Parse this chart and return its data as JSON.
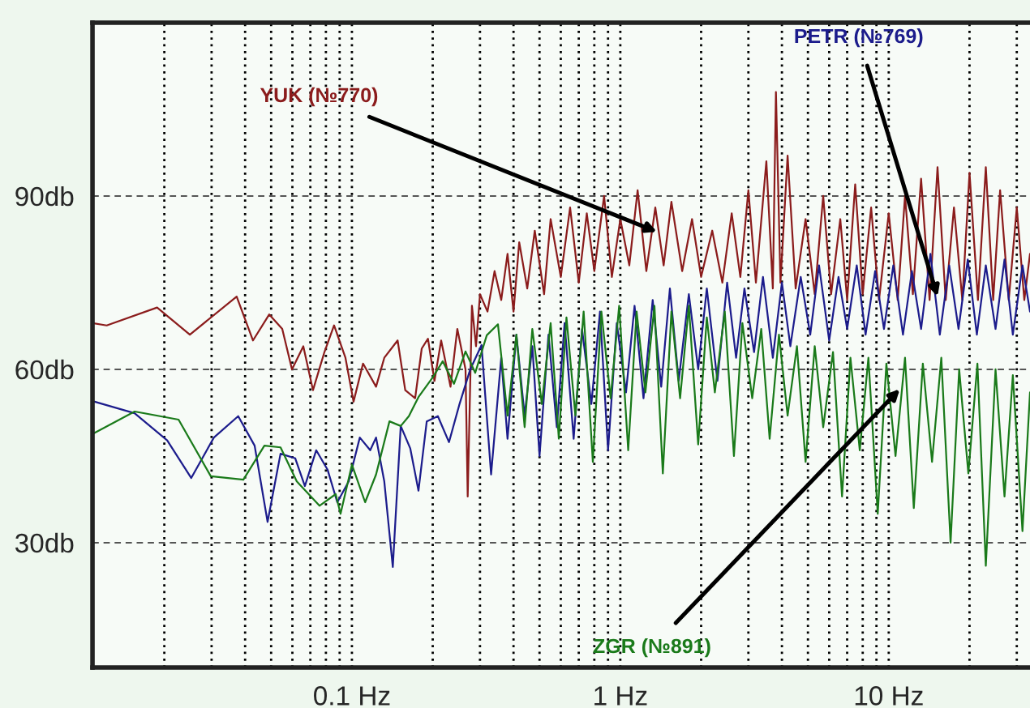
{
  "chart_data": {
    "type": "line",
    "log": "x",
    "grid": true,
    "line_style": "solid",
    "marker": "none",
    "xlim": [
      0.0108,
      33.6
    ],
    "ylim": [
      8.4,
      120
    ],
    "xticks": [
      {
        "value": 0.1,
        "label": "0.1 Hz"
      },
      {
        "value": 1,
        "label": "1 Hz"
      },
      {
        "value": 10,
        "label": "10 Hz"
      }
    ],
    "yticks": [
      {
        "value": 30,
        "label": "30db"
      },
      {
        "value": 60,
        "label": "60db"
      },
      {
        "value": 90,
        "label": "90db"
      }
    ],
    "annotations": [
      {
        "text": "YUK (№770)",
        "x": 1.37,
        "y": 83.8
      },
      {
        "text": "PETR (№769)",
        "x": 15.2,
        "y": 72.6
      },
      {
        "text": "ZGR (№891)",
        "x": 11,
        "y": 56.6
      }
    ],
    "series": [
      {
        "color": "#8b1c1c",
        "x": [
          0.0108,
          0.0122,
          0.0188,
          0.0249,
          0.0372,
          0.0428,
          0.0492,
          0.055,
          0.0598,
          0.0659,
          0.0716,
          0.079,
          0.0858,
          0.0946,
          0.1014,
          0.11,
          0.123,
          0.132,
          0.148,
          0.158,
          0.172,
          0.182,
          0.192,
          0.203,
          0.215,
          0.233,
          0.247,
          0.265,
          0.27,
          0.28,
          0.29,
          0.3,
          0.32,
          0.34,
          0.36,
          0.38,
          0.4,
          0.42,
          0.45,
          0.48,
          0.52,
          0.55,
          0.6,
          0.65,
          0.7,
          0.75,
          0.8,
          0.87,
          0.93,
          1.0,
          1.08,
          1.16,
          1.25,
          1.35,
          1.45,
          1.55,
          1.7,
          1.85,
          2.0,
          2.2,
          2.4,
          2.6,
          2.8,
          3.0,
          3.2,
          3.5,
          3.7,
          3.8,
          3.95,
          4.2,
          4.5,
          4.9,
          5.3,
          5.7,
          6.1,
          6.6,
          7.0,
          7.5,
          8.0,
          8.6,
          9.2,
          10,
          10.8,
          11.5,
          12.3,
          13.2,
          14.2,
          15.2,
          16.3,
          17.5,
          18.8,
          20,
          21.5,
          23,
          24.5,
          26,
          28,
          30,
          32,
          33.6
        ],
        "values": [
          68,
          67.6,
          70.7,
          66,
          72.6,
          65,
          69.5,
          67,
          60,
          64,
          56.4,
          63,
          67.6,
          62,
          54.4,
          61,
          57,
          62,
          65,
          56.4,
          55,
          63.6,
          65.3,
          58,
          65,
          57,
          67,
          60,
          38,
          71,
          64,
          73,
          70,
          77,
          72,
          80,
          70,
          82,
          74,
          84,
          73,
          86,
          76,
          88,
          75,
          87,
          77,
          90,
          76,
          86,
          78,
          91,
          77,
          88,
          78,
          89,
          77,
          86,
          76,
          84,
          75,
          87,
          76,
          91,
          75,
          96,
          74,
          108,
          75,
          97,
          74,
          86,
          73,
          90,
          73,
          86,
          72,
          92,
          73,
          88,
          72,
          87,
          72,
          90,
          73,
          93,
          72,
          95,
          72,
          88,
          72,
          94,
          72,
          95,
          72,
          91,
          72,
          88,
          72,
          80
        ]
      },
      {
        "color": "#1c1c8c",
        "x": [
          0.011,
          0.0155,
          0.0205,
          0.0252,
          0.0306,
          0.0377,
          0.0434,
          0.0485,
          0.0542,
          0.0615,
          0.0668,
          0.0736,
          0.0812,
          0.0882,
          0.0973,
          0.107,
          0.117,
          0.123,
          0.132,
          0.142,
          0.152,
          0.165,
          0.177,
          0.19,
          0.209,
          0.23,
          0.251,
          0.276,
          0.304,
          0.33,
          0.36,
          0.38,
          0.41,
          0.44,
          0.47,
          0.5,
          0.54,
          0.58,
          0.62,
          0.67,
          0.72,
          0.78,
          0.84,
          0.9,
          0.97,
          1.05,
          1.13,
          1.22,
          1.32,
          1.42,
          1.53,
          1.65,
          1.8,
          1.95,
          2.1,
          2.3,
          2.5,
          2.7,
          2.9,
          3.15,
          3.4,
          3.7,
          4.0,
          4.3,
          4.7,
          5.1,
          5.5,
          6.0,
          6.5,
          7.0,
          7.6,
          8.2,
          8.9,
          9.6,
          10.4,
          11.3,
          12.2,
          13.2,
          14.3,
          15.5,
          16.8,
          18.2,
          19.7,
          21.3,
          23,
          25,
          27,
          29,
          31.5,
          33.6
        ],
        "values": [
          54.4,
          52.4,
          47.7,
          41.2,
          48.2,
          51.9,
          46.8,
          33.6,
          45.4,
          44.6,
          39.8,
          46,
          42.6,
          37,
          40.6,
          48.2,
          46,
          48.2,
          40.6,
          25.8,
          50.2,
          46.3,
          39,
          51,
          51.9,
          47.4,
          53.8,
          60,
          64.2,
          41.8,
          62,
          48,
          66,
          52,
          64,
          45,
          66,
          50,
          68,
          48,
          67,
          54,
          70,
          46,
          68,
          56,
          71,
          55,
          72,
          57,
          74,
          58,
          73,
          60,
          74,
          58,
          75,
          62,
          74,
          63,
          76,
          62,
          75,
          64,
          76,
          66,
          78,
          65,
          76,
          67,
          78,
          66,
          77,
          67,
          78,
          66,
          77,
          67,
          80,
          66,
          78,
          67,
          79,
          66,
          78,
          67,
          79,
          66,
          78,
          70
        ]
      },
      {
        "color": "#1a7a1a",
        "x": [
          0.0108,
          0.0155,
          0.0226,
          0.0298,
          0.0394,
          0.0472,
          0.0542,
          0.0623,
          0.0757,
          0.087,
          0.0907,
          0.1,
          0.112,
          0.123,
          0.138,
          0.152,
          0.163,
          0.177,
          0.2,
          0.218,
          0.24,
          0.265,
          0.288,
          0.318,
          0.35,
          0.38,
          0.41,
          0.44,
          0.47,
          0.51,
          0.55,
          0.59,
          0.63,
          0.68,
          0.73,
          0.79,
          0.85,
          0.92,
          0.99,
          1.07,
          1.15,
          1.24,
          1.34,
          1.44,
          1.55,
          1.67,
          1.8,
          1.95,
          2.1,
          2.25,
          2.45,
          2.65,
          2.85,
          3.1,
          3.35,
          3.6,
          3.9,
          4.2,
          4.55,
          4.9,
          5.3,
          5.7,
          6.2,
          6.7,
          7.2,
          7.8,
          8.4,
          9.1,
          9.8,
          10.6,
          11.5,
          12.4,
          13.4,
          14.5,
          15.7,
          17,
          18.3,
          19.8,
          21.4,
          23,
          25,
          27,
          29,
          31.5,
          33.6
        ],
        "values": [
          48.8,
          52.7,
          51.3,
          41.5,
          40.9,
          46.8,
          46.5,
          40.6,
          36.4,
          38.4,
          35,
          43.5,
          37,
          41.8,
          51,
          50.2,
          51.9,
          55.2,
          58.6,
          61.4,
          57.5,
          63.1,
          59.4,
          65.9,
          67.8,
          52,
          66,
          50,
          67,
          54,
          68,
          48,
          69,
          52,
          70,
          44,
          70,
          55,
          71,
          46,
          70,
          56,
          71,
          42,
          70,
          55,
          71,
          47,
          69,
          56,
          70,
          45,
          68,
          55,
          67,
          48,
          66,
          52,
          64,
          44,
          64,
          50,
          63,
          38,
          62,
          46,
          62,
          35,
          61,
          45,
          62,
          36,
          61,
          44,
          62,
          30,
          60,
          42,
          61,
          26,
          60,
          38,
          59,
          32,
          56
        ]
      }
    ]
  }
}
